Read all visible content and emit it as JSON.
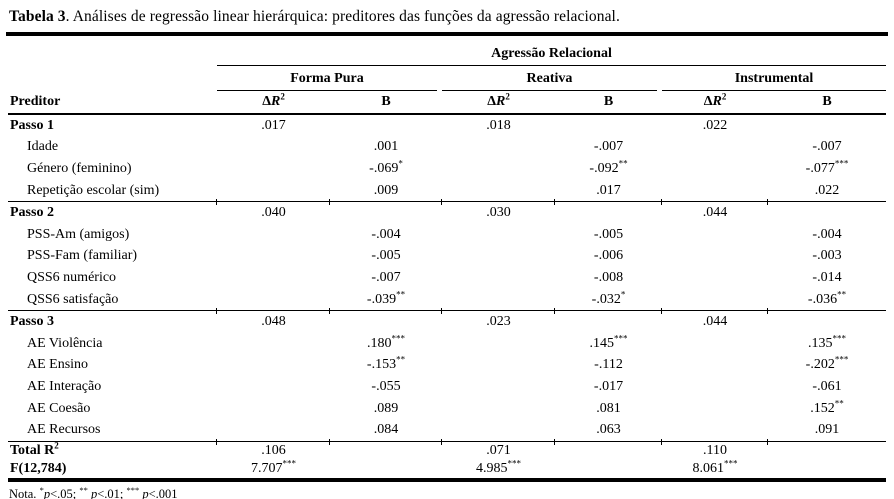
{
  "title": {
    "bold": "Tabela 3",
    "rest": ". Análises de regressão linear hierárquica: preditores das funções da agressão relacional."
  },
  "table": {
    "top_header": "Agressão Relacional",
    "groups": [
      {
        "label": "Forma Pura"
      },
      {
        "label": "Reativa"
      },
      {
        "label": "Instrumental"
      }
    ],
    "col_labels": {
      "predictor": "Preditor",
      "delta": "Δ",
      "r": "R",
      "exp": "2",
      "b": "B"
    },
    "rows": [
      {
        "label": "Passo 1",
        "bold": true,
        "indent": 0,
        "rule_top": false,
        "cells": [
          ".017",
          "",
          ".018",
          "",
          ".022",
          ""
        ]
      },
      {
        "label": "Idade",
        "bold": false,
        "indent": 1,
        "cells": [
          "",
          ".001",
          "",
          "-.007",
          "",
          "-.007"
        ]
      },
      {
        "label": "Género (feminino)",
        "bold": false,
        "indent": 1,
        "cells": [
          "",
          "-.069*",
          "",
          "-.092**",
          "",
          "-.077***"
        ]
      },
      {
        "label": "Repetição escolar (sim)",
        "bold": false,
        "indent": 1,
        "cells": [
          "",
          ".009",
          "",
          ".017",
          "",
          ".022"
        ]
      },
      {
        "label": "Passo 2",
        "bold": true,
        "indent": 0,
        "rule_top": true,
        "cells": [
          ".040",
          "",
          ".030",
          "",
          ".044",
          ""
        ]
      },
      {
        "label": "PSS-Am (amigos)",
        "bold": false,
        "indent": 1,
        "cells": [
          "",
          "-.004",
          "",
          "-.005",
          "",
          "-.004"
        ]
      },
      {
        "label": "PSS-Fam (familiar)",
        "bold": false,
        "indent": 1,
        "cells": [
          "",
          "-.005",
          "",
          "-.006",
          "",
          "-.003"
        ]
      },
      {
        "label": "QSS6 numérico",
        "bold": false,
        "indent": 1,
        "cells": [
          "",
          "-.007",
          "",
          "-.008",
          "",
          "-.014"
        ]
      },
      {
        "label": "QSS6 satisfação",
        "bold": false,
        "indent": 1,
        "cells": [
          "",
          "-.039**",
          "",
          "-.032*",
          "",
          "-.036**"
        ]
      },
      {
        "label": "Passo 3",
        "bold": true,
        "indent": 0,
        "rule_top": true,
        "cells": [
          ".048",
          "",
          ".023",
          "",
          ".044",
          ""
        ]
      },
      {
        "label": "AE Violência",
        "bold": false,
        "indent": 1,
        "cells": [
          "",
          ".180***",
          "",
          ".145***",
          "",
          ".135***"
        ]
      },
      {
        "label": "AE Ensino",
        "bold": false,
        "indent": 1,
        "cells": [
          "",
          "-.153**",
          "",
          "-.112",
          "",
          "-.202***"
        ]
      },
      {
        "label": "AE Interação",
        "bold": false,
        "indent": 1,
        "cells": [
          "",
          "-.055",
          "",
          "-.017",
          "",
          "-.061"
        ]
      },
      {
        "label": "AE Coesão",
        "bold": false,
        "indent": 1,
        "cells": [
          "",
          ".089",
          "",
          ".081",
          "",
          ".152**"
        ]
      },
      {
        "label": "AE Recursos",
        "bold": false,
        "indent": 1,
        "cells": [
          "",
          ".084",
          "",
          ".063",
          "",
          ".091"
        ]
      },
      {
        "label": "Total R",
        "label_sup": "2",
        "bold": true,
        "indent": 0,
        "rule_top": true,
        "compact": true,
        "cells": [
          ".106",
          "",
          ".071",
          "",
          ".110",
          ""
        ]
      },
      {
        "label": "F(12,784)",
        "bold": true,
        "indent": 0,
        "compact": true,
        "last": true,
        "cells": [
          "7.707***",
          "",
          "4.985***",
          "",
          "8.061***",
          ""
        ]
      }
    ]
  },
  "note": {
    "label": "Nota.",
    "segments": [
      {
        "stars": "*",
        "gap": "",
        "p": "p",
        "tail": "<.05; "
      },
      {
        "stars": "**",
        "gap": " ",
        "p": "p",
        "tail": "<.01; "
      },
      {
        "stars": "***",
        "gap": " ",
        "p": "p",
        "tail": "<.001"
      }
    ]
  }
}
